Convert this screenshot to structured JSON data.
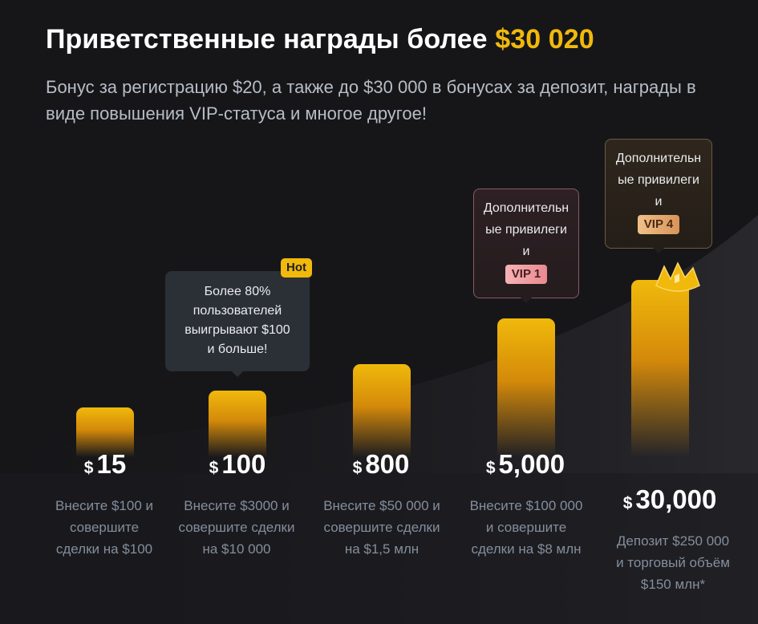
{
  "header": {
    "title_prefix": "Приветственные награды более",
    "title_amount": "$30 020",
    "subtitle": "Бонус за регистрацию $20, а также до $30 000 в бонусах за депозит, награды в виде повышения VIP-статуса и многое другое!"
  },
  "tiers": [
    {
      "currency": "$",
      "amount": "15",
      "description": "Внесите $100 и совершите сделки на $100"
    },
    {
      "currency": "$",
      "amount": "100",
      "description": "Внесите $3000 и совершите сделки на $10 000",
      "bubble_text": "Более 80% пользователей выигрывают $100 и больше!",
      "hot_label": "Hot"
    },
    {
      "currency": "$",
      "amount": "800",
      "description": "Внесите $50 000 и совершите сделки на $1,5 млн"
    },
    {
      "currency": "$",
      "amount": "5,000",
      "description": "Внесите $100 000 и совершите сделки на $8 млн",
      "bubble_text": "Дополнительные привилегии",
      "vip_label": "VIP 1"
    },
    {
      "currency": "$",
      "amount": "30,000",
      "description": "Депозит $250 000 и торговый объём $150 млн*",
      "bubble_text": "Дополнительные привилегии",
      "vip_label": "VIP 4"
    }
  ],
  "colors": {
    "accent": "#F0B90B",
    "background": "#161619",
    "vip1": "#E88A8F",
    "vip4": "#D8945A"
  }
}
